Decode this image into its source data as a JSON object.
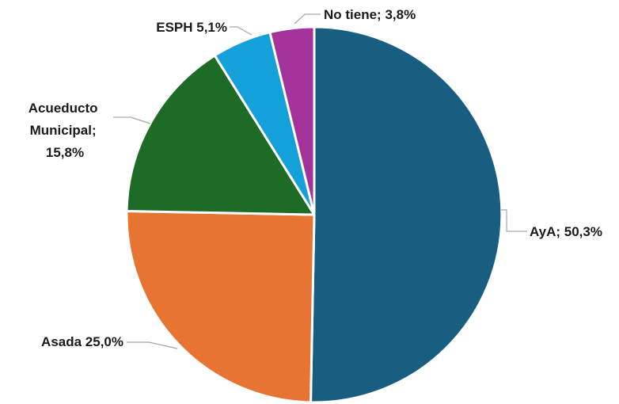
{
  "chart_data": {
    "type": "pie",
    "title": "",
    "slices": [
      {
        "name": "AyA",
        "value": 50.3,
        "label_lines": [
          "AyA; 50,3%"
        ],
        "color": "#175e80"
      },
      {
        "name": "Asada",
        "value": 25.0,
        "label_lines": [
          "Asada  25,0%"
        ],
        "color": "#e87433"
      },
      {
        "name": "Acueducto Municipal",
        "value": 15.8,
        "label_lines": [
          "Acueducto",
          "Municipal;",
          "15,8%"
        ],
        "color": "#1d6b26"
      },
      {
        "name": "ESPH",
        "value": 5.1,
        "label_lines": [
          "ESPH 5,1%"
        ],
        "color": "#14a0d8"
      },
      {
        "name": "No tiene",
        "value": 3.8,
        "label_lines": [
          "No tiene; 3,8%"
        ],
        "color": "#a3329a"
      }
    ],
    "start_angle_deg": 0,
    "direction": "clockwise",
    "legend": "none"
  }
}
